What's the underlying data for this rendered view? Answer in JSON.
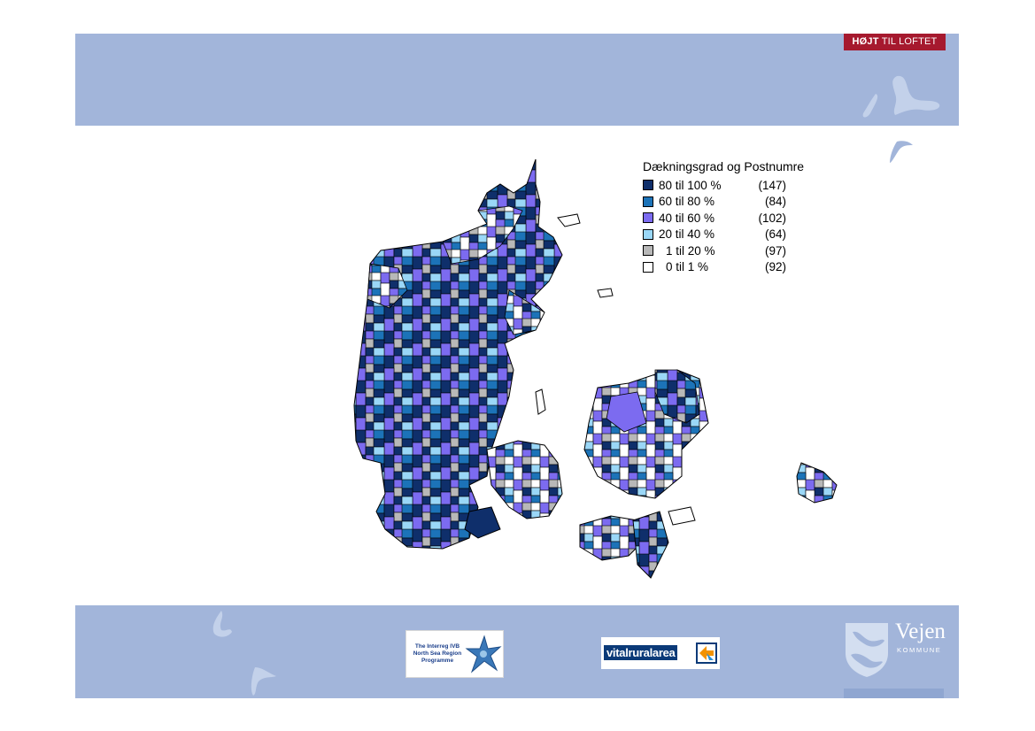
{
  "brand": {
    "tag_bold": "HØJT",
    "tag_rest": " TIL LOFTET"
  },
  "legend": {
    "title": "Dækningsgrad og Postnumre",
    "items": [
      {
        "label": "80 til 100 %",
        "count": "(147)",
        "color": "#0f2f6b"
      },
      {
        "label": "60 til 80 %",
        "count": "(84)",
        "color": "#1c73b8"
      },
      {
        "label": "40 til 60 %",
        "count": "(102)",
        "color": "#7c6bf0"
      },
      {
        "label": "20 til 40 %",
        "count": "(64)",
        "color": "#9ad7f7"
      },
      {
        "label": "1 til 20 %",
        "count": "(97)",
        "color": "#b8b8b8"
      },
      {
        "label": "0 til 1 %",
        "count": "(92)",
        "color": "#ffffff"
      }
    ]
  },
  "footer": {
    "interreg_text": "The Interreg IVB North Sea Region Programme",
    "vital_text": "vitalruralarea",
    "vejen_name": "Vejen",
    "vejen_kommune": "KOMMUNE"
  },
  "colors": {
    "band": "#a2b5da",
    "brand_red": "#a6192e"
  }
}
